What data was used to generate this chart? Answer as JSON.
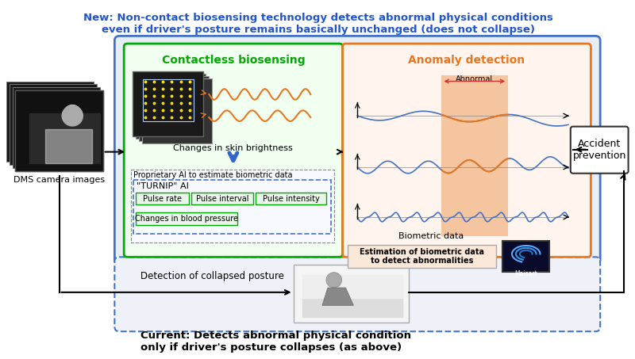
{
  "title_new": "New: Non-contact biosensing technology detects abnormal physical conditions\neven if driver's posture remains basically unchanged (does not collapse)",
  "title_current": "Current: Detects abnormal physical condition\nonly if driver's posture collapses (as above)",
  "dms_label": "DMS camera images",
  "contactless_title": "Contactless biosensing",
  "anomaly_title": "Anomaly detection",
  "accident_label": "Accident\nprevention",
  "skin_brightness": "Changes in skin brightness",
  "proprietary_ai": "Proprietary AI to estimate biometric data",
  "turnip_ai": "\"TURNIP\" AI",
  "pulse_rate": "Pulse rate",
  "pulse_interval": "Pulse interval",
  "pulse_intensity": "Pulse intensity",
  "blood_pressure": "Changes in blood pressure",
  "biometric_data": "Biometric data",
  "estimation_text": "Estimation of biometric data\nto detect abnormalities",
  "abnormal_label": "Abnormal",
  "detection_collapsed": "Detection of collapsed posture",
  "bg_color": "#ffffff",
  "outer_box_color": "#4472c4",
  "contactless_box_color": "#00aa00",
  "anomaly_box_color": "#e87722",
  "title_color": "#2255cc",
  "contactless_title_color": "#00aa00",
  "anomaly_title_color": "#e87722"
}
